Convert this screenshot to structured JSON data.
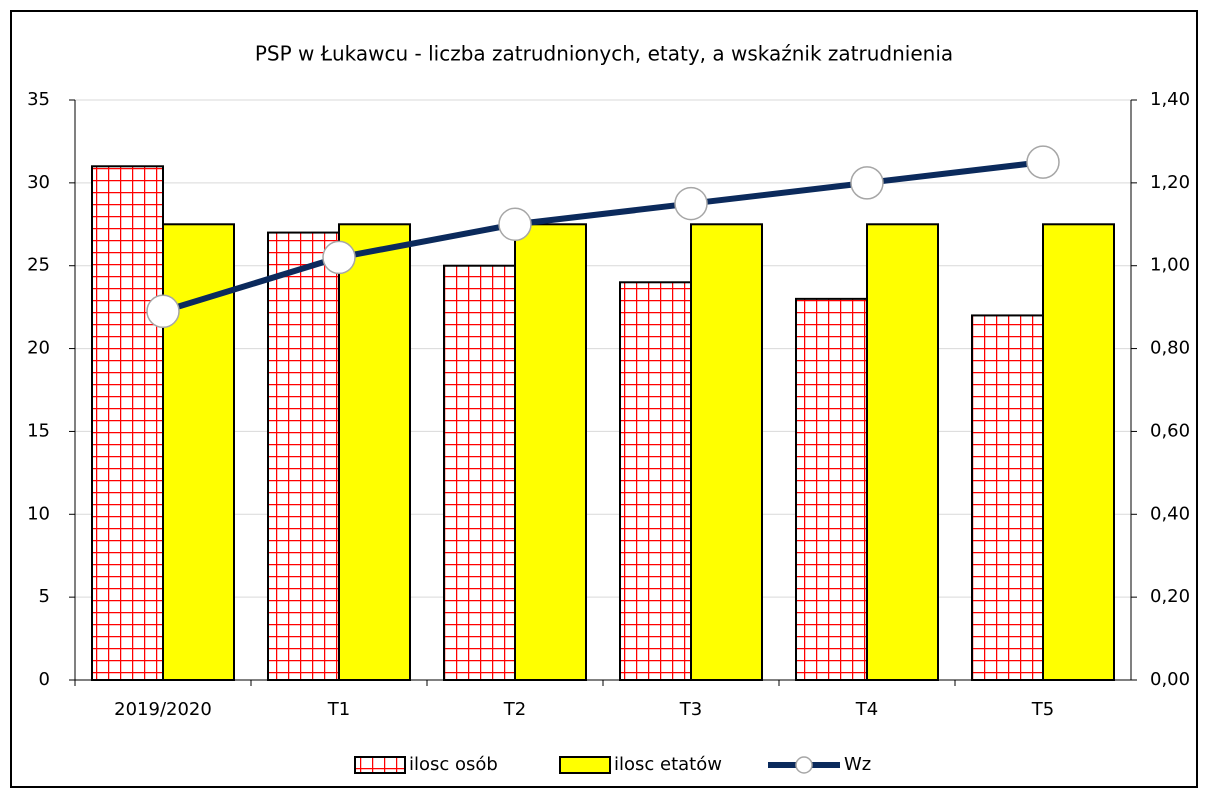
{
  "chart_data": {
    "type": "bar",
    "title": "PSP w Łukawcu -  liczba zatrudnionych,  etaty, a wskaźnik zatrudnienia",
    "categories": [
      "2019/2020",
      "T1",
      "T2",
      "T3",
      "T4",
      "T5"
    ],
    "series": [
      {
        "name": "ilosc osób",
        "type": "bar",
        "color": "#ff0000",
        "values": [
          31,
          27,
          25,
          24,
          23,
          22
        ]
      },
      {
        "name": "ilosc etatów",
        "type": "bar",
        "color": "#ffff00",
        "values": [
          27.5,
          27.5,
          27.5,
          27.5,
          27.5,
          27.5
        ]
      },
      {
        "name": "Wz",
        "type": "line",
        "axis": "y2",
        "color": "#0b2a5c",
        "values": [
          0.89,
          1.02,
          1.1,
          1.15,
          1.2,
          1.25
        ]
      }
    ],
    "ylim": [
      0,
      35
    ],
    "yticks": [
      0,
      5,
      10,
      15,
      20,
      25,
      30,
      35
    ],
    "y2lim": [
      0,
      1.4
    ],
    "y2ticks": [
      {
        "value": 0,
        "label": "0,00"
      },
      {
        "value": 0.2,
        "label": "0,20"
      },
      {
        "value": 0.4,
        "label": "0,40"
      },
      {
        "value": 0.6,
        "label": "0,60"
      },
      {
        "value": 0.8,
        "label": "0,80"
      },
      {
        "value": 1.0,
        "label": "1,00"
      },
      {
        "value": 1.2,
        "label": "1,20"
      },
      {
        "value": 1.4,
        "label": "1,40"
      }
    ],
    "grid": true,
    "legend": "bottom"
  }
}
